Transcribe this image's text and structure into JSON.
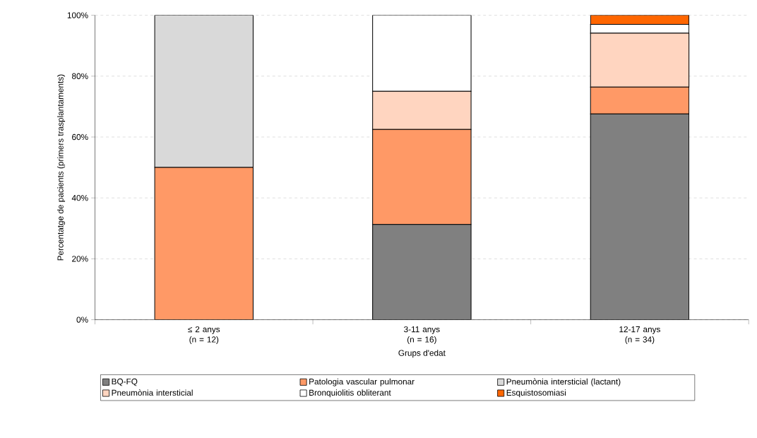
{
  "chart_data": {
    "type": "bar",
    "stacked": true,
    "xlabel": "Grups d'edat",
    "ylabel": "Percentatge de pacients (primers trasplantaments)",
    "categories": [
      "≤ 2 anys (n = 12)",
      "3-11 anys (n = 16)",
      "12-17 anys (n = 34)"
    ],
    "series": [
      {
        "name": "BQ-FQ",
        "color": "#808080",
        "values": [
          0,
          31.3,
          67.6
        ]
      },
      {
        "name": "Patologia vascular pulmonar",
        "color": "#ff9966",
        "values": [
          50,
          31.2,
          8.8
        ]
      },
      {
        "name": "Pneumònia intersticial (lactant)",
        "color": "#d9d9d9",
        "values": [
          50,
          0,
          0
        ]
      },
      {
        "name": "Pneumònia intersticial",
        "color": "#ffd5c0",
        "values": [
          0,
          12.5,
          17.7
        ]
      },
      {
        "name": "Bronquiolitis obliterant",
        "color": "#ffffff",
        "values": [
          0,
          25,
          2.9
        ]
      },
      {
        "name": "Esquistosomiasi",
        "color": "#ff6600",
        "values": [
          0,
          0,
          3.0
        ]
      }
    ],
    "ylim": [
      0,
      100
    ],
    "yticks": [
      {
        "value": 0,
        "label": "0%"
      },
      {
        "value": 20,
        "label": "20%"
      },
      {
        "value": 40,
        "label": "40%"
      },
      {
        "value": 60,
        "label": "60%"
      },
      {
        "value": 80,
        "label": "80%"
      },
      {
        "value": 100,
        "label": "100%"
      }
    ],
    "grid": "y",
    "legend": "bottom"
  }
}
